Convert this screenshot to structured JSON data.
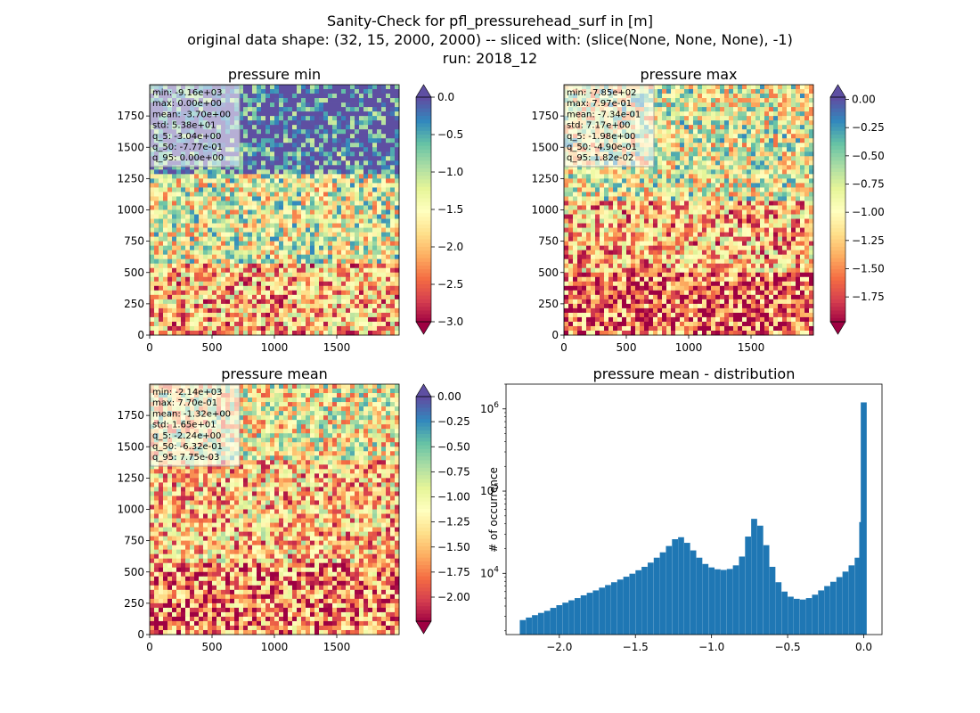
{
  "suptitle": {
    "line1": "Sanity-Check for pfl_pressurehead_surf in [m]",
    "line2": "original data shape: (32, 15, 2000, 2000) -- sliced with: (slice(None, None, None), -1)",
    "line3": "run: 2018_12"
  },
  "chart_data": [
    {
      "type": "heatmap",
      "title": "pressure min",
      "colormap": "Spectral",
      "xticks": [
        "0",
        "500",
        "1000",
        "1500"
      ],
      "yticks": [
        "0",
        "250",
        "500",
        "750",
        "1000",
        "1250",
        "1500",
        "1750"
      ],
      "xlim": [
        0,
        2000
      ],
      "ylim": [
        0,
        2000
      ],
      "colorbar": {
        "range": [
          -3.0,
          0.0
        ],
        "extend": "both",
        "ticks": [
          "0.0",
          "-0.5",
          "-1.0",
          "-1.5",
          "-2.0",
          "-2.5",
          "-3.0"
        ]
      },
      "stats": [
        "min: -9.16e+03",
        "max: 0.00e+00",
        "mean: -3.70e+00",
        "std: 5.38e+01",
        "q_5: -3.04e+00",
        "q_50: -7.77e-01",
        "q_95: 0.00e+00"
      ]
    },
    {
      "type": "heatmap",
      "title": "pressure max",
      "colormap": "Spectral",
      "xticks": [
        "0",
        "500",
        "1000",
        "1500"
      ],
      "yticks": [
        "0",
        "250",
        "500",
        "750",
        "1000",
        "1250",
        "1500",
        "1750"
      ],
      "xlim": [
        0,
        2000
      ],
      "ylim": [
        0,
        2000
      ],
      "colorbar": {
        "range": [
          -1.97,
          0.02
        ],
        "extend": "both",
        "ticks": [
          "0.00",
          "-0.25",
          "-0.50",
          "-0.75",
          "-1.00",
          "-1.25",
          "-1.50",
          "-1.75"
        ]
      },
      "stats": [
        "min: -7.85e+02",
        "max: 7.97e-01",
        "mean: -7.34e-01",
        "std: 7.17e+00",
        "q_5: -1.98e+00",
        "q_50: -4.90e-01",
        "q_95: 1.82e-02"
      ]
    },
    {
      "type": "heatmap",
      "title": "pressure mean",
      "colormap": "Spectral",
      "xticks": [
        "0",
        "500",
        "1000",
        "1500"
      ],
      "yticks": [
        "0",
        "250",
        "500",
        "750",
        "1000",
        "1250",
        "1500",
        "1750"
      ],
      "xlim": [
        0,
        2000
      ],
      "ylim": [
        0,
        2000
      ],
      "colorbar": {
        "range": [
          -2.24,
          0.0
        ],
        "extend": "both",
        "ticks": [
          "0.00",
          "-0.25",
          "-0.50",
          "-0.75",
          "-1.00",
          "-1.25",
          "-1.50",
          "-1.75",
          "-2.00"
        ]
      },
      "stats": [
        "min: -2.14e+03",
        "max: 7.70e-01",
        "mean: -1.32e+00",
        "std: 1.65e+01",
        "q_5: -2.24e+00",
        "q_50: -6.32e-01",
        "q_95: 7.75e-03"
      ]
    },
    {
      "type": "bar",
      "title": "pressure mean - distribution",
      "ylabel": "# of occurrence",
      "yscale": "log",
      "color": "#1f77b4",
      "xlim": [
        -2.35,
        0.12
      ],
      "ylim": [
        1800,
        2000000
      ],
      "xticks": [
        -2.0,
        -1.5,
        -1.0,
        -0.5,
        0.0
      ],
      "xtick_labels": [
        "−2.0",
        "−1.5",
        "−1.0",
        "−0.5",
        "0.0"
      ],
      "yticks": [
        10000,
        100000,
        1000000
      ],
      "bins": [
        {
          "x": -2.24,
          "y": 2700
        },
        {
          "x": -2.2,
          "y": 2900
        },
        {
          "x": -2.16,
          "y": 3100
        },
        {
          "x": -2.12,
          "y": 3300
        },
        {
          "x": -2.08,
          "y": 3500
        },
        {
          "x": -2.04,
          "y": 3800
        },
        {
          "x": -2.0,
          "y": 4100
        },
        {
          "x": -1.96,
          "y": 4400
        },
        {
          "x": -1.92,
          "y": 4700
        },
        {
          "x": -1.88,
          "y": 5000
        },
        {
          "x": -1.84,
          "y": 5400
        },
        {
          "x": -1.8,
          "y": 5800
        },
        {
          "x": -1.76,
          "y": 6200
        },
        {
          "x": -1.72,
          "y": 6700
        },
        {
          "x": -1.68,
          "y": 7200
        },
        {
          "x": -1.64,
          "y": 7800
        },
        {
          "x": -1.6,
          "y": 8400
        },
        {
          "x": -1.56,
          "y": 9100
        },
        {
          "x": -1.52,
          "y": 9900
        },
        {
          "x": -1.48,
          "y": 10900
        },
        {
          "x": -1.44,
          "y": 12000
        },
        {
          "x": -1.4,
          "y": 13500
        },
        {
          "x": -1.36,
          "y": 15500
        },
        {
          "x": -1.32,
          "y": 18000
        },
        {
          "x": -1.28,
          "y": 21500
        },
        {
          "x": -1.24,
          "y": 26000
        },
        {
          "x": -1.2,
          "y": 27500
        },
        {
          "x": -1.16,
          "y": 23500
        },
        {
          "x": -1.12,
          "y": 19000
        },
        {
          "x": -1.08,
          "y": 15500
        },
        {
          "x": -1.04,
          "y": 13000
        },
        {
          "x": -1.0,
          "y": 11800
        },
        {
          "x": -0.96,
          "y": 11200
        },
        {
          "x": -0.92,
          "y": 11000
        },
        {
          "x": -0.88,
          "y": 11300
        },
        {
          "x": -0.84,
          "y": 12500
        },
        {
          "x": -0.8,
          "y": 16000
        },
        {
          "x": -0.76,
          "y": 28000
        },
        {
          "x": -0.72,
          "y": 46000
        },
        {
          "x": -0.68,
          "y": 38000
        },
        {
          "x": -0.64,
          "y": 22000
        },
        {
          "x": -0.6,
          "y": 12000
        },
        {
          "x": -0.56,
          "y": 7800
        },
        {
          "x": -0.52,
          "y": 6000
        },
        {
          "x": -0.48,
          "y": 5200
        },
        {
          "x": -0.44,
          "y": 4900
        },
        {
          "x": -0.4,
          "y": 4800
        },
        {
          "x": -0.36,
          "y": 5000
        },
        {
          "x": -0.32,
          "y": 5500
        },
        {
          "x": -0.28,
          "y": 6200
        },
        {
          "x": -0.24,
          "y": 7000
        },
        {
          "x": -0.2,
          "y": 7900
        },
        {
          "x": -0.16,
          "y": 9000
        },
        {
          "x": -0.12,
          "y": 10500
        },
        {
          "x": -0.08,
          "y": 12500
        },
        {
          "x": -0.04,
          "y": 15500
        },
        {
          "x": -0.01,
          "y": 42000
        },
        {
          "x": 0.0,
          "y": 1200000
        }
      ]
    }
  ]
}
